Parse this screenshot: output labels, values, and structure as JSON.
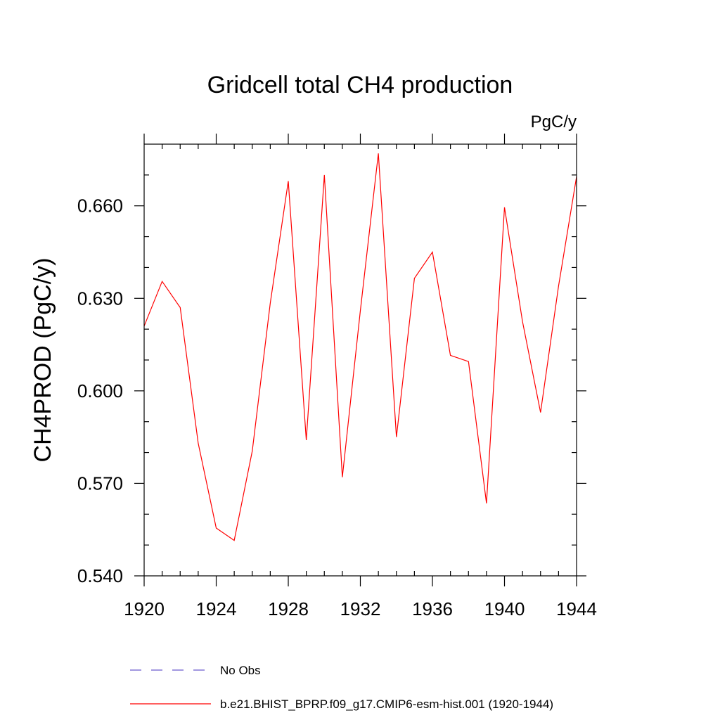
{
  "chart_data": {
    "type": "line",
    "title": "Gridcell total CH4 production",
    "units_label": "PgC/y",
    "ylabel": "CH4PROD  (PgC/y)",
    "xlabel": "",
    "xlim": [
      1920,
      1944
    ],
    "ylim": [
      0.54,
      0.68
    ],
    "x_ticks": [
      1920,
      1924,
      1928,
      1932,
      1936,
      1940,
      1944
    ],
    "x_tick_labels": [
      "1920",
      "1924",
      "1928",
      "1932",
      "1936",
      "1940",
      "1944"
    ],
    "y_ticks": [
      0.54,
      0.57,
      0.6,
      0.63,
      0.66
    ],
    "y_tick_labels": [
      "0.540",
      "0.570",
      "0.600",
      "0.630",
      "0.660"
    ],
    "grid": false,
    "legend_position": "bottom",
    "series": [
      {
        "name": "b.e21.BHIST_BPRP.f09_g17.CMIP6-esm-hist.001 (1920-1944)",
        "color": "#ff0000",
        "style": "solid",
        "x": [
          1920,
          1921,
          1922,
          1923,
          1924,
          1925,
          1926,
          1927,
          1928,
          1929,
          1930,
          1931,
          1932,
          1933,
          1934,
          1935,
          1936,
          1937,
          1938,
          1939,
          1940,
          1941,
          1942,
          1943,
          1944
        ],
        "values": [
          0.621,
          0.6355,
          0.627,
          0.583,
          0.5555,
          0.5515,
          0.5805,
          0.6285,
          0.668,
          0.584,
          0.67,
          0.572,
          0.626,
          0.677,
          0.585,
          0.6365,
          0.645,
          0.6115,
          0.6095,
          0.5635,
          0.6595,
          0.6225,
          0.593,
          0.634,
          0.6695
        ]
      },
      {
        "name": "No Obs",
        "color": "#6a5acd",
        "style": "dashed",
        "x": [],
        "values": []
      }
    ]
  }
}
